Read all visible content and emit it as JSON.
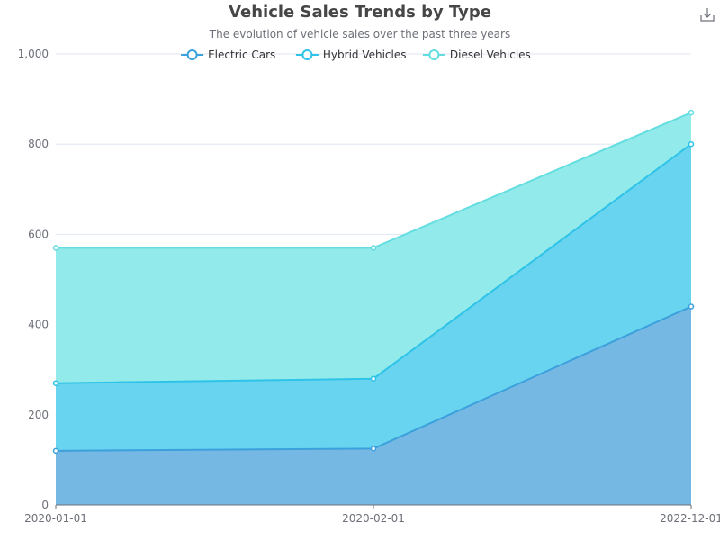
{
  "chart_data": {
    "type": "area",
    "stacked": true,
    "title": "Vehicle Sales Trends by Type",
    "subtitle": "The evolution of vehicle sales over the past three years",
    "x": [
      "2020-01-01",
      "2020-02-01",
      "2022-12-01"
    ],
    "ylim": [
      0,
      1000
    ],
    "yticks": [
      0,
      200,
      400,
      600,
      800,
      1000
    ],
    "ytick_labels": [
      "0",
      "200",
      "400",
      "600",
      "800",
      "1,000"
    ],
    "grid": true,
    "legend_position": "top-center",
    "series": [
      {
        "name": "Electric Cars",
        "values": [
          120,
          125,
          440
        ],
        "color": "#3ba0dc",
        "fill": "#74b8e3"
      },
      {
        "name": "Hybrid Vehicles",
        "values": [
          150,
          155,
          360
        ],
        "color": "#2ec3e8",
        "fill": "#69d4ef"
      },
      {
        "name": "Diesel Vehicles",
        "values": [
          300,
          290,
          70
        ],
        "color": "#64dde0",
        "fill": "#93eaea"
      }
    ]
  },
  "toolbar": {
    "download_icon": "download-icon"
  }
}
